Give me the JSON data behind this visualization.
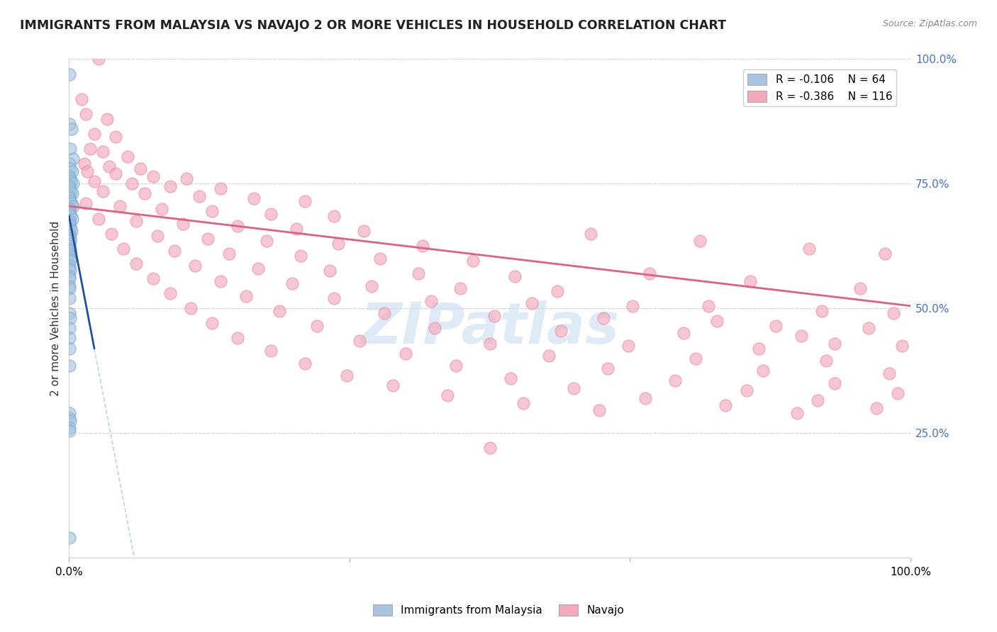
{
  "title": "IMMIGRANTS FROM MALAYSIA VS NAVAJO 2 OR MORE VEHICLES IN HOUSEHOLD CORRELATION CHART",
  "source": "Source: ZipAtlas.com",
  "ylabel": "2 or more Vehicles in Household",
  "legend_label1": "Immigrants from Malaysia",
  "legend_label2": "Navajo",
  "blue_color": "#a8c4e0",
  "blue_edge_color": "#7aaad0",
  "pink_color": "#f4a8bc",
  "pink_edge_color": "#e890a8",
  "blue_line_color": "#2050a0",
  "pink_line_color": "#e06080",
  "gray_dash_color": "#b0c8e0",
  "watermark_color": "#c8dff0",
  "blue_points": [
    [
      0.05,
      97.0
    ],
    [
      0.08,
      87.0
    ],
    [
      0.3,
      86.0
    ],
    [
      0.12,
      82.0
    ],
    [
      0.5,
      80.0
    ],
    [
      0.05,
      79.0
    ],
    [
      0.15,
      78.0
    ],
    [
      0.4,
      77.5
    ],
    [
      0.05,
      76.5
    ],
    [
      0.1,
      76.0
    ],
    [
      0.25,
      75.5
    ],
    [
      0.5,
      75.0
    ],
    [
      0.03,
      74.5
    ],
    [
      0.08,
      74.0
    ],
    [
      0.2,
      73.5
    ],
    [
      0.35,
      73.0
    ],
    [
      0.02,
      72.5
    ],
    [
      0.07,
      72.0
    ],
    [
      0.15,
      71.5
    ],
    [
      0.28,
      71.0
    ],
    [
      0.45,
      70.5
    ],
    [
      0.02,
      70.0
    ],
    [
      0.06,
      69.5
    ],
    [
      0.12,
      69.0
    ],
    [
      0.22,
      68.5
    ],
    [
      0.35,
      68.0
    ],
    [
      0.02,
      67.5
    ],
    [
      0.05,
      67.0
    ],
    [
      0.1,
      66.5
    ],
    [
      0.18,
      66.0
    ],
    [
      0.3,
      65.5
    ],
    [
      0.02,
      65.0
    ],
    [
      0.05,
      64.5
    ],
    [
      0.1,
      64.0
    ],
    [
      0.18,
      63.5
    ],
    [
      0.02,
      63.0
    ],
    [
      0.05,
      62.5
    ],
    [
      0.1,
      62.0
    ],
    [
      0.18,
      61.5
    ],
    [
      0.02,
      61.0
    ],
    [
      0.05,
      60.5
    ],
    [
      0.1,
      60.0
    ],
    [
      0.18,
      59.5
    ],
    [
      0.03,
      58.5
    ],
    [
      0.08,
      58.0
    ],
    [
      0.15,
      57.5
    ],
    [
      0.03,
      56.5
    ],
    [
      0.07,
      56.0
    ],
    [
      0.03,
      54.5
    ],
    [
      0.07,
      54.0
    ],
    [
      0.03,
      52.0
    ],
    [
      0.05,
      49.0
    ],
    [
      0.1,
      48.0
    ],
    [
      0.03,
      46.0
    ],
    [
      0.05,
      44.0
    ],
    [
      0.03,
      42.0
    ],
    [
      0.05,
      38.5
    ],
    [
      0.03,
      29.0
    ],
    [
      0.07,
      28.0
    ],
    [
      0.12,
      27.5
    ],
    [
      0.03,
      26.0
    ],
    [
      0.07,
      25.5
    ],
    [
      0.05,
      4.0
    ]
  ],
  "pink_points": [
    [
      3.5,
      100.0
    ],
    [
      1.5,
      92.0
    ],
    [
      2.0,
      89.0
    ],
    [
      4.5,
      88.0
    ],
    [
      3.0,
      85.0
    ],
    [
      5.5,
      84.5
    ],
    [
      2.5,
      82.0
    ],
    [
      4.0,
      81.5
    ],
    [
      7.0,
      80.5
    ],
    [
      1.8,
      79.0
    ],
    [
      4.8,
      78.5
    ],
    [
      8.5,
      78.0
    ],
    [
      2.2,
      77.5
    ],
    [
      5.5,
      77.0
    ],
    [
      10.0,
      76.5
    ],
    [
      14.0,
      76.0
    ],
    [
      3.0,
      75.5
    ],
    [
      7.5,
      75.0
    ],
    [
      12.0,
      74.5
    ],
    [
      18.0,
      74.0
    ],
    [
      4.0,
      73.5
    ],
    [
      9.0,
      73.0
    ],
    [
      15.5,
      72.5
    ],
    [
      22.0,
      72.0
    ],
    [
      28.0,
      71.5
    ],
    [
      2.0,
      71.0
    ],
    [
      6.0,
      70.5
    ],
    [
      11.0,
      70.0
    ],
    [
      17.0,
      69.5
    ],
    [
      24.0,
      69.0
    ],
    [
      31.5,
      68.5
    ],
    [
      3.5,
      68.0
    ],
    [
      8.0,
      67.5
    ],
    [
      13.5,
      67.0
    ],
    [
      20.0,
      66.5
    ],
    [
      27.0,
      66.0
    ],
    [
      35.0,
      65.5
    ],
    [
      5.0,
      65.0
    ],
    [
      10.5,
      64.5
    ],
    [
      16.5,
      64.0
    ],
    [
      23.5,
      63.5
    ],
    [
      32.0,
      63.0
    ],
    [
      42.0,
      62.5
    ],
    [
      6.5,
      62.0
    ],
    [
      12.5,
      61.5
    ],
    [
      19.0,
      61.0
    ],
    [
      27.5,
      60.5
    ],
    [
      37.0,
      60.0
    ],
    [
      48.0,
      59.5
    ],
    [
      8.0,
      59.0
    ],
    [
      15.0,
      58.5
    ],
    [
      22.5,
      58.0
    ],
    [
      31.0,
      57.5
    ],
    [
      41.5,
      57.0
    ],
    [
      53.0,
      56.5
    ],
    [
      10.0,
      56.0
    ],
    [
      18.0,
      55.5
    ],
    [
      26.5,
      55.0
    ],
    [
      36.0,
      54.5
    ],
    [
      46.5,
      54.0
    ],
    [
      58.0,
      53.5
    ],
    [
      12.0,
      53.0
    ],
    [
      21.0,
      52.5
    ],
    [
      31.5,
      52.0
    ],
    [
      43.0,
      51.5
    ],
    [
      55.0,
      51.0
    ],
    [
      67.0,
      50.5
    ],
    [
      14.5,
      50.0
    ],
    [
      25.0,
      49.5
    ],
    [
      37.5,
      49.0
    ],
    [
      50.5,
      48.5
    ],
    [
      63.5,
      48.0
    ],
    [
      77.0,
      47.5
    ],
    [
      17.0,
      47.0
    ],
    [
      29.5,
      46.5
    ],
    [
      43.5,
      46.0
    ],
    [
      58.5,
      45.5
    ],
    [
      73.0,
      45.0
    ],
    [
      87.0,
      44.5
    ],
    [
      20.0,
      44.0
    ],
    [
      34.5,
      43.5
    ],
    [
      50.0,
      43.0
    ],
    [
      66.5,
      42.5
    ],
    [
      82.0,
      42.0
    ],
    [
      24.0,
      41.5
    ],
    [
      40.0,
      41.0
    ],
    [
      57.0,
      40.5
    ],
    [
      74.5,
      40.0
    ],
    [
      90.0,
      39.5
    ],
    [
      28.0,
      39.0
    ],
    [
      46.0,
      38.5
    ],
    [
      64.0,
      38.0
    ],
    [
      82.5,
      37.5
    ],
    [
      97.5,
      37.0
    ],
    [
      33.0,
      36.5
    ],
    [
      52.5,
      36.0
    ],
    [
      72.0,
      35.5
    ],
    [
      91.0,
      35.0
    ],
    [
      38.5,
      34.5
    ],
    [
      60.0,
      34.0
    ],
    [
      80.5,
      33.5
    ],
    [
      98.5,
      33.0
    ],
    [
      45.0,
      32.5
    ],
    [
      68.5,
      32.0
    ],
    [
      89.0,
      31.5
    ],
    [
      54.0,
      31.0
    ],
    [
      78.0,
      30.5
    ],
    [
      96.0,
      30.0
    ],
    [
      63.0,
      29.5
    ],
    [
      86.5,
      29.0
    ],
    [
      50.0,
      22.0
    ],
    [
      62.0,
      65.0
    ],
    [
      75.0,
      63.5
    ],
    [
      88.0,
      62.0
    ],
    [
      97.0,
      61.0
    ],
    [
      69.0,
      57.0
    ],
    [
      81.0,
      55.5
    ],
    [
      94.0,
      54.0
    ],
    [
      76.0,
      50.5
    ],
    [
      89.5,
      49.5
    ],
    [
      98.0,
      49.0
    ],
    [
      84.0,
      46.5
    ],
    [
      95.0,
      46.0
    ],
    [
      91.0,
      43.0
    ],
    [
      99.0,
      42.5
    ]
  ],
  "xlim": [
    0,
    100
  ],
  "ylim": [
    0,
    100
  ],
  "blue_trend_x0": 0.0,
  "blue_trend_y0": 68.5,
  "blue_trend_x1": 3.0,
  "blue_trend_y1": 42.0,
  "pink_trend_x0": 0.0,
  "pink_trend_y0": 70.5,
  "pink_trend_x1": 100.0,
  "pink_trend_y1": 50.5
}
